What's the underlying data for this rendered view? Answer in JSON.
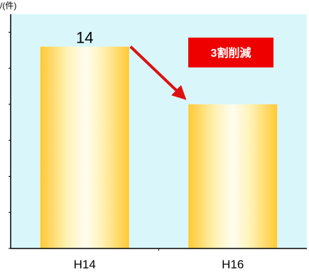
{
  "chart_data": {
    "type": "bar",
    "unit_label": "/(件)",
    "categories": [
      "H14",
      "H16"
    ],
    "values": [
      14,
      10
    ],
    "data_labels": [
      "14",
      ""
    ],
    "ylim": [
      0,
      16.25
    ],
    "grid": false,
    "annotation": {
      "text": "3割削減",
      "box_color": "#ee0000",
      "text_color": "#ffffff",
      "arrow_color": "#dd1111"
    },
    "colors": {
      "plot_background": "#d9f7fb",
      "bar_edge": "#ffc933",
      "bar_mid": "#fff2b5",
      "bar_center": "#fffdf0",
      "axis": "#000000"
    }
  }
}
